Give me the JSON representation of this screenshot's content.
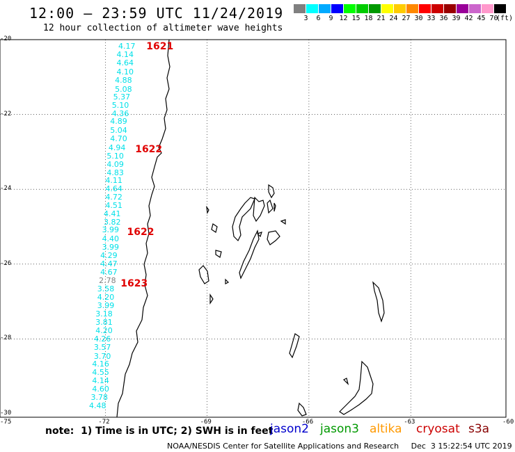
{
  "header": {
    "title": "12:00 – 23:59 UTC 11/24/2019",
    "subtitle": "12 hour collection of altimeter wave heights"
  },
  "colorbar": {
    "unit": "(ft)",
    "bins": [
      {
        "label": "3",
        "color": "#808080"
      },
      {
        "label": "6",
        "color": "#00ffff"
      },
      {
        "label": "9",
        "color": "#00aaff"
      },
      {
        "label": "12",
        "color": "#0000ff"
      },
      {
        "label": "15",
        "color": "#00ff00"
      },
      {
        "label": "18",
        "color": "#00cc00"
      },
      {
        "label": "21",
        "color": "#009900"
      },
      {
        "label": "24",
        "color": "#ffff00"
      },
      {
        "label": "27",
        "color": "#ffcc00"
      },
      {
        "label": "30",
        "color": "#ff8800"
      },
      {
        "label": "33",
        "color": "#ff0000"
      },
      {
        "label": "36",
        "color": "#cc0000"
      },
      {
        "label": "39",
        "color": "#990000"
      },
      {
        "label": "42",
        "color": "#990099"
      },
      {
        "label": "45",
        "color": "#cc66cc"
      },
      {
        "label": "70",
        "color": "#ff99cc"
      },
      {
        "label": "",
        "color": "#000000"
      }
    ]
  },
  "axes": {
    "lat_labels": [
      "-20",
      "-22",
      "-24",
      "-26",
      "-28",
      "-30"
    ],
    "lon_labels": [
      "-75",
      "-72",
      "-69",
      "-66",
      "-63",
      "-60"
    ]
  },
  "wave_heights": [
    {
      "v": "4.17",
      "lat": -20.2,
      "lon": -71.33
    },
    {
      "v": "4.14",
      "lat": -20.43,
      "lon": -71.38
    },
    {
      "v": "4.64",
      "lat": -20.65,
      "lon": -71.38
    },
    {
      "v": "4.10",
      "lat": -20.89,
      "lon": -71.38
    },
    {
      "v": "4.88",
      "lat": -21.11,
      "lon": -71.43
    },
    {
      "v": "5.08",
      "lat": -21.35,
      "lon": -71.43
    },
    {
      "v": "5.37",
      "lat": -21.57,
      "lon": -71.48
    },
    {
      "v": "5.10",
      "lat": -21.79,
      "lon": -71.52
    },
    {
      "v": "4.36",
      "lat": -22.0,
      "lon": -71.52
    },
    {
      "v": "4.89",
      "lat": -22.22,
      "lon": -71.57
    },
    {
      "v": "5.04",
      "lat": -22.45,
      "lon": -71.57
    },
    {
      "v": "4.70",
      "lat": -22.67,
      "lon": -71.57
    },
    {
      "v": "4.94",
      "lat": -22.91,
      "lon": -71.62
    },
    {
      "v": "5.10",
      "lat": -23.14,
      "lon": -71.67
    },
    {
      "v": "4.09",
      "lat": -23.36,
      "lon": -71.67
    },
    {
      "v": "4.83",
      "lat": -23.58,
      "lon": -71.67
    },
    {
      "v": "4.11",
      "lat": -23.8,
      "lon": -71.71
    },
    {
      "v": "4.64",
      "lat": -24.02,
      "lon": -71.71
    },
    {
      "v": "4.72",
      "lat": -24.24,
      "lon": -71.71
    },
    {
      "v": "4.51",
      "lat": -24.46,
      "lon": -71.71
    },
    {
      "v": "4.41",
      "lat": -24.69,
      "lon": -71.76
    },
    {
      "v": "3.82",
      "lat": -24.91,
      "lon": -71.76
    },
    {
      "v": "3.99",
      "lat": -25.11,
      "lon": -71.81
    },
    {
      "v": "4.40",
      "lat": -25.35,
      "lon": -71.81
    },
    {
      "v": "3.99",
      "lat": -25.57,
      "lon": -71.81
    },
    {
      "v": "4.29",
      "lat": -25.8,
      "lon": -71.86
    },
    {
      "v": "4.47",
      "lat": -26.02,
      "lon": -71.86
    },
    {
      "v": "4.67",
      "lat": -26.25,
      "lon": -71.86
    },
    {
      "v": "2.78",
      "lat": -26.46,
      "lon": -71.9,
      "gray": true
    },
    {
      "v": "3.58",
      "lat": -26.69,
      "lon": -71.95
    },
    {
      "v": "4.20",
      "lat": -26.92,
      "lon": -71.95
    },
    {
      "v": "3.99",
      "lat": -27.14,
      "lon": -71.95
    },
    {
      "v": "3.18",
      "lat": -27.36,
      "lon": -72.0
    },
    {
      "v": "3.81",
      "lat": -27.59,
      "lon": -72.0
    },
    {
      "v": "4.20",
      "lat": -27.8,
      "lon": -72.0
    },
    {
      "v": "4.26",
      "lat": -28.03,
      "lon": -72.05
    },
    {
      "v": "3.57",
      "lat": -28.26,
      "lon": -72.05
    },
    {
      "v": "3.70",
      "lat": -28.49,
      "lon": -72.05
    },
    {
      "v": "4.16",
      "lat": -28.7,
      "lon": -72.1
    },
    {
      "v": "4.55",
      "lat": -28.93,
      "lon": -72.1
    },
    {
      "v": "4.14",
      "lat": -29.15,
      "lon": -72.1
    },
    {
      "v": "4.60",
      "lat": -29.37,
      "lon": -72.1
    },
    {
      "v": "3.78",
      "lat": -29.6,
      "lon": -72.14
    },
    {
      "v": "4.48",
      "lat": -29.82,
      "lon": -72.19
    }
  ],
  "pass_labels": [
    {
      "v": "1621",
      "lat": -20.21,
      "lon": -70.38
    },
    {
      "v": "1622",
      "lat": -22.96,
      "lon": -70.71
    },
    {
      "v": "1622",
      "lat": -25.16,
      "lon": -70.95
    },
    {
      "v": "1623",
      "lat": -26.55,
      "lon": -71.14
    }
  ],
  "note": "note:  1) Time is in UTC; 2) SWH is in feet",
  "satellites": [
    {
      "name": "jason2",
      "color": "#0000cc"
    },
    {
      "name": "jason3",
      "color": "#009900"
    },
    {
      "name": "altika",
      "color": "#ff9900"
    },
    {
      "name": "cryosat",
      "color": "#cc0000"
    },
    {
      "name": "s3a",
      "color": "#880000"
    }
  ],
  "credit": "NOAA/NESDIS Center for Satellite Applications and Research     Dec  3 15:22:54 UTC 2019"
}
